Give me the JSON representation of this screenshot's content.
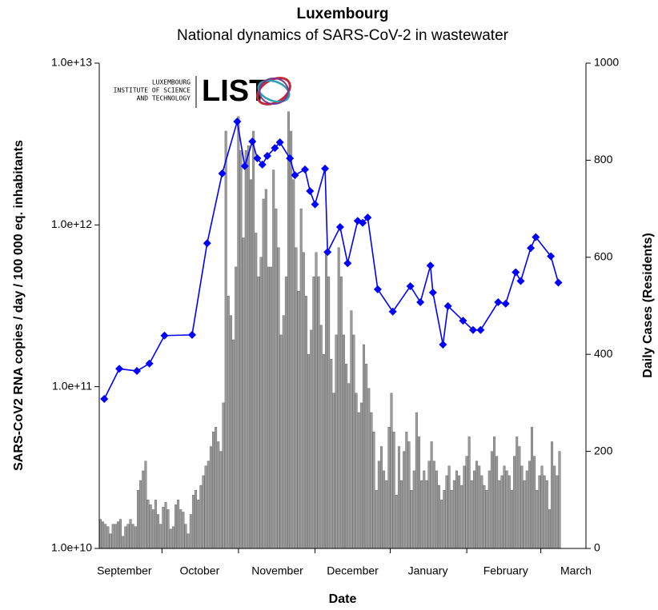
{
  "chart_data": {
    "type": "bar-line",
    "title": "Luxembourg",
    "subtitle": "National dynamics of SARS-CoV-2 in wastewater",
    "xlabel": "Date",
    "ylabel": "SARS-CoV2 RNA copies / day  / 100 000 eq. inhabitants",
    "y2label": "Daily Cases (Residents)",
    "logo": {
      "lines": [
        "LUXEMBOURG",
        "INSTITUTE OF SCIENCE",
        "AND TECHNOLOGY"
      ],
      "name": "LIST"
    },
    "xlim": [
      0,
      194
    ],
    "xticks": [
      {
        "value": 10,
        "label": "September"
      },
      {
        "value": 40,
        "label": "October"
      },
      {
        "value": 71,
        "label": "November"
      },
      {
        "value": 101,
        "label": "December"
      },
      {
        "value": 131,
        "label": "January"
      },
      {
        "value": 162,
        "label": "February"
      },
      {
        "value": 190,
        "label": "March"
      }
    ],
    "ylog": true,
    "ylim": [
      10000000000,
      10000000000000
    ],
    "yticks": [
      {
        "value": 10000000000,
        "label": "1.0e+10"
      },
      {
        "value": 100000000000,
        "label": "1.0e+11"
      },
      {
        "value": 1000000000000,
        "label": "1.0e+12"
      },
      {
        "value": 10000000000000,
        "label": "1.0e+13"
      }
    ],
    "y2lim": [
      0,
      1000
    ],
    "y2ticks": [
      0,
      200,
      400,
      600,
      800,
      1000
    ],
    "series": [
      {
        "type": "bar",
        "axis": "y2",
        "color": "#9c9c9c",
        "x": [
          0,
          1,
          2,
          3,
          4,
          5,
          6,
          7,
          8,
          9,
          10,
          11,
          12,
          13,
          14,
          15,
          16,
          17,
          18,
          19,
          20,
          21,
          22,
          23,
          24,
          25,
          26,
          27,
          28,
          29,
          30,
          31,
          32,
          33,
          34,
          35,
          36,
          37,
          38,
          39,
          40,
          41,
          42,
          43,
          44,
          45,
          46,
          47,
          48,
          49,
          50,
          51,
          52,
          53,
          54,
          55,
          56,
          57,
          58,
          59,
          60,
          61,
          62,
          63,
          64,
          65,
          66,
          67,
          68,
          69,
          70,
          71,
          72,
          73,
          74,
          75,
          76,
          77,
          78,
          79,
          80,
          81,
          82,
          83,
          84,
          85,
          86,
          87,
          88,
          89,
          90,
          91,
          92,
          93,
          94,
          95,
          96,
          97,
          98,
          99,
          100,
          101,
          102,
          103,
          104,
          105,
          106,
          107,
          108,
          109,
          110,
          111,
          112,
          113,
          114,
          115,
          116,
          117,
          118,
          119,
          120,
          121,
          122,
          123,
          124,
          125,
          126,
          127,
          128,
          129,
          130,
          131,
          132,
          133,
          134,
          135,
          136,
          137,
          138,
          139,
          140,
          141,
          142,
          143,
          144,
          145,
          146,
          147,
          148,
          149,
          150,
          151,
          152,
          153,
          154,
          155,
          156,
          157,
          158,
          159,
          160,
          161,
          162,
          163,
          164,
          165,
          166,
          167,
          168,
          169,
          170,
          171,
          172,
          173,
          174,
          175,
          176,
          177,
          178,
          179,
          180,
          181,
          182,
          183
        ],
        "values": [
          60,
          55,
          50,
          45,
          30,
          50,
          50,
          55,
          60,
          25,
          45,
          50,
          60,
          50,
          45,
          120,
          140,
          160,
          180,
          100,
          90,
          80,
          100,
          70,
          50,
          85,
          95,
          80,
          40,
          45,
          90,
          100,
          80,
          75,
          50,
          30,
          70,
          110,
          120,
          100,
          130,
          150,
          170,
          180,
          210,
          240,
          250,
          220,
          200,
          300,
          860,
          520,
          480,
          430,
          580,
          890,
          820,
          640,
          820,
          830,
          760,
          860,
          650,
          560,
          600,
          720,
          740,
          580,
          580,
          780,
          700,
          620,
          440,
          480,
          560,
          900,
          860,
          760,
          620,
          530,
          700,
          610,
          520,
          400,
          450,
          560,
          610,
          560,
          460,
          400,
          610,
          560,
          390,
          320,
          440,
          620,
          560,
          440,
          380,
          340,
          490,
          440,
          320,
          280,
          300,
          420,
          380,
          330,
          280,
          240,
          120,
          180,
          210,
          160,
          140,
          250,
          320,
          240,
          110,
          210,
          140,
          200,
          240,
          220,
          120,
          160,
          280,
          230,
          140,
          160,
          140,
          180,
          220,
          180,
          160,
          130,
          100,
          120,
          150,
          170,
          120,
          140,
          160,
          150,
          130,
          170,
          190,
          230,
          140,
          160,
          180,
          170,
          150,
          130,
          120,
          160,
          200,
          230,
          190,
          140,
          150,
          170,
          160,
          150,
          120,
          190,
          230,
          210,
          170,
          140,
          160,
          180,
          250,
          190,
          120,
          150,
          170,
          150,
          140,
          80,
          220,
          170,
          150,
          200
        ]
      },
      {
        "type": "line",
        "axis": "y",
        "color": "#0000ff",
        "x": [
          2,
          8,
          15,
          20,
          26,
          37,
          43,
          49,
          55,
          58,
          61,
          63,
          65,
          67,
          70,
          72,
          76,
          78,
          82,
          84,
          86,
          90,
          91,
          96,
          99,
          103,
          105,
          107,
          111,
          117,
          124,
          128,
          132,
          133,
          137,
          139,
          145,
          149,
          152,
          159,
          162,
          166,
          168,
          172,
          174,
          180,
          183
        ],
        "values": [
          84000000000,
          129000000000,
          125000000000,
          139000000000,
          207000000000,
          209000000000,
          770000000000,
          2080000000000,
          4360000000000,
          2310000000000,
          3280000000000,
          2580000000000,
          2360000000000,
          2670000000000,
          2990000000000,
          3240000000000,
          2580000000000,
          2030000000000,
          2200000000000,
          1620000000000,
          1340000000000,
          2230000000000,
          680000000000,
          970000000000,
          580000000000,
          1060000000000,
          1030000000000,
          1110000000000,
          400000000000,
          291000000000,
          418000000000,
          333000000000,
          560000000000,
          382000000000,
          182000000000,
          315000000000,
          256000000000,
          224000000000,
          224000000000,
          333000000000,
          326000000000,
          510000000000,
          450000000000,
          720000000000,
          840000000000,
          640000000000,
          440000000000
        ]
      }
    ]
  }
}
